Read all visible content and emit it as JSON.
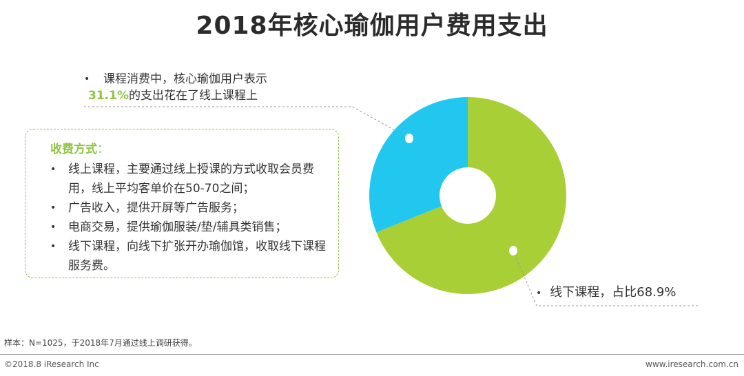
{
  "page": {
    "title": "2018年核心瑜伽用户费用支出",
    "sample_note": "样本：N=1025，于2018年7月通过线上调研获得。",
    "copyright": "©2018.8 iResearch Inc",
    "website": "www.iresearch.com.cn"
  },
  "callouts": {
    "online_line1": "课程消费中，核心瑜伽用户表示",
    "online_pct": "31.1%",
    "online_line2_rest": "的支出花在了线上课程上",
    "offline_text": "线下课程，占比68.9%"
  },
  "charging": {
    "title": "收费方式",
    "colon": "：",
    "items": [
      "线上课程，主要通过线上授课的方式收取会员费用，线上平均客单价在50-70之间；",
      "广告收入，提供开屏等广告服务；",
      "电商交易，提供瑜伽服装/垫/辅具类销售；",
      "线下课程，向线下扩张开办瑜伽馆，收取线下课程服务费。"
    ]
  },
  "colors": {
    "offline": "#a9cf37",
    "online": "#22c7f0",
    "accent": "#8dc63f"
  },
  "chart_data": {
    "type": "pie",
    "donut": true,
    "title": "2018年核心瑜伽用户费用支出",
    "slices": [
      {
        "name": "线下课程",
        "value": 68.9,
        "color": "#a9cf37"
      },
      {
        "name": "线上课程",
        "value": 31.1,
        "color": "#22c7f0"
      }
    ],
    "start": "top",
    "direction": "clockwise",
    "legend": "none"
  }
}
